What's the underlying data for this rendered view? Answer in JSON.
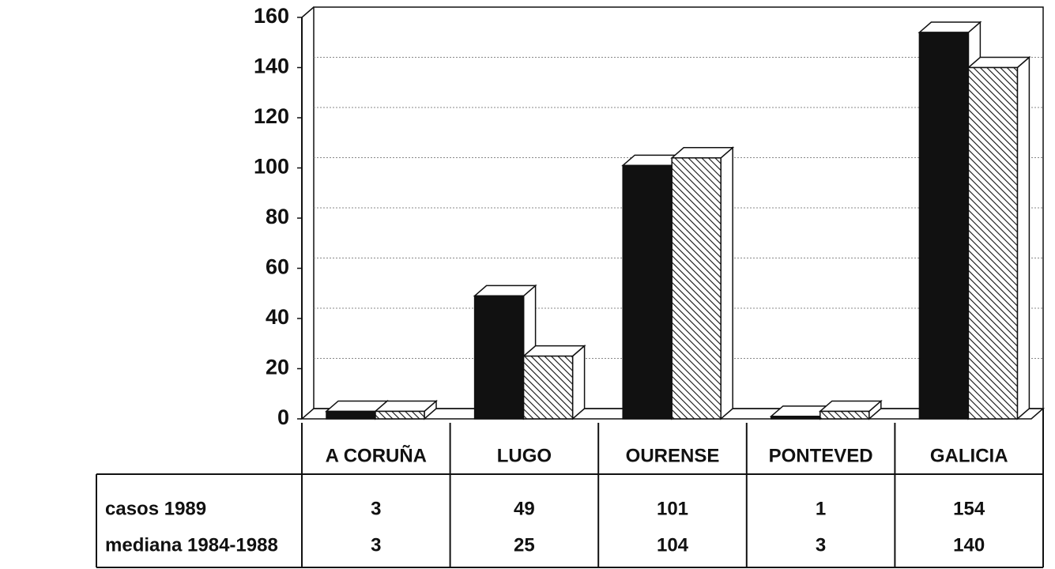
{
  "chart_data": {
    "type": "bar3d",
    "categories": [
      "A CORUÑA",
      "LUGO",
      "OURENSE",
      "PONTEVED",
      "GALICIA"
    ],
    "series": [
      {
        "name": "casos 1989",
        "color": "#111111",
        "values": [
          3,
          49,
          101,
          1,
          154
        ]
      },
      {
        "name": "mediana 1984-1988",
        "color": "hatch",
        "values": [
          3,
          25,
          104,
          3,
          140
        ]
      }
    ],
    "ylim": [
      0,
      160
    ],
    "yticks": [
      0,
      20,
      40,
      60,
      80,
      100,
      120,
      140,
      160
    ],
    "grid": true
  }
}
